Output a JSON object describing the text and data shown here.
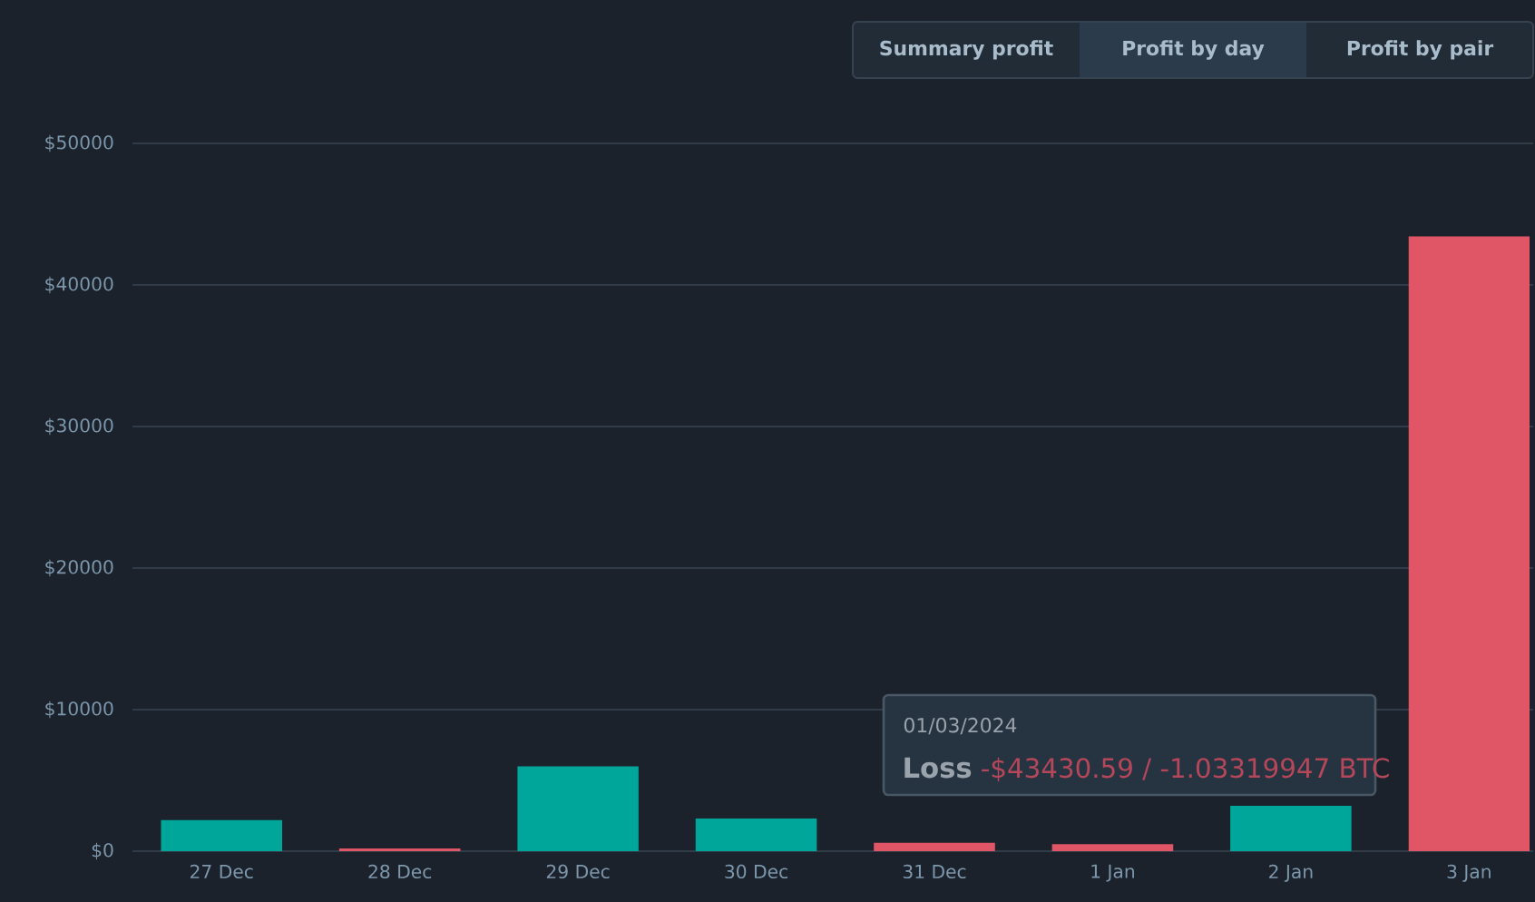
{
  "chart_data": {
    "type": "bar",
    "categories": [
      "27 Dec",
      "28 Dec",
      "29 Dec",
      "30 Dec",
      "31 Dec",
      "1 Jan",
      "2 Jan",
      "3 Jan"
    ],
    "values": [
      2200,
      200,
      6000,
      2300,
      600,
      500,
      3200,
      43430.59
    ],
    "colors": [
      "#00a69a",
      "#e05666",
      "#00a69a",
      "#00a69a",
      "#e05666",
      "#e05666",
      "#00a69a",
      "#e05666"
    ],
    "ylim": [
      0,
      50000
    ],
    "yticks": [
      {
        "value": 0,
        "label": "$0"
      },
      {
        "value": 10000,
        "label": "$10000"
      },
      {
        "value": 20000,
        "label": "$20000"
      },
      {
        "value": 30000,
        "label": "$30000"
      },
      {
        "value": 40000,
        "label": "$40000"
      },
      {
        "value": 50000,
        "label": "$50000"
      }
    ],
    "grid": "y",
    "annotations": [
      "Summary profit",
      "Profit by day",
      "Profit by pair",
      "01/03/2024",
      "Loss",
      "-$43430.59  / -1.03319947 BTC"
    ]
  }
}
